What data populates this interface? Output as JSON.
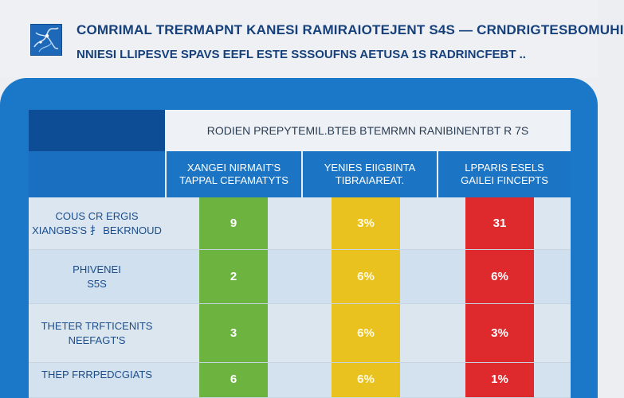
{
  "header": {
    "title": "COMRIMAL TRERMAPNT KANESI RAMIRAIOTEJENT S4S — CRNDRIGTESBOMUHI",
    "subtitle": "NNIESI LLIPESVE SPAVS EEFL ESTE SSSOUFNS AETUSA 1S RADRINCFEBT ..",
    "logo_icon": "logo-map-icon"
  },
  "table": {
    "title": "RODIEN PREPYTEMIL.BTEB BTEMRMN RANIBINENTBT R 7S",
    "columns": [
      {
        "label_line1": "XANGEI NIRMAIT'S",
        "label_line2": "TAPPAL CEFAMATYTS",
        "color": "#6cb43f"
      },
      {
        "label_line1": "YENIES EIIGBINTA",
        "label_line2": "TIBRAIAREAT.",
        "color": "#e9c21f"
      },
      {
        "label_line1": "LPPARIS ESELS",
        "label_line2": "GAILEI FINCEPTS",
        "color": "#de2a2d"
      }
    ],
    "rows": [
      {
        "label_line1": "COUS CR ERGIS",
        "label_line2": "XIANGBS'S 扌 BEKRNOUD",
        "values": [
          "9",
          "3%",
          "31"
        ]
      },
      {
        "label_line1": "PHIVENEI",
        "label_line2": "S5S",
        "values": [
          "2",
          "6%",
          "6%"
        ]
      },
      {
        "label_line1": "THETER TRFTICENITS",
        "label_line2": "NEEFAGT'S",
        "values": [
          "3",
          "6%",
          "3%"
        ]
      },
      {
        "label_line1": "THEP FRRPEDCGIATS",
        "label_line2": "",
        "values": [
          "6",
          "6%",
          "1%"
        ]
      }
    ]
  },
  "colors": {
    "header_text": "#16407c",
    "panel_blue": "#1b77c7",
    "dark_navy": "#0d4d95",
    "green": "#6cb43f",
    "yellow": "#e9c21f",
    "red": "#de2a2d"
  }
}
